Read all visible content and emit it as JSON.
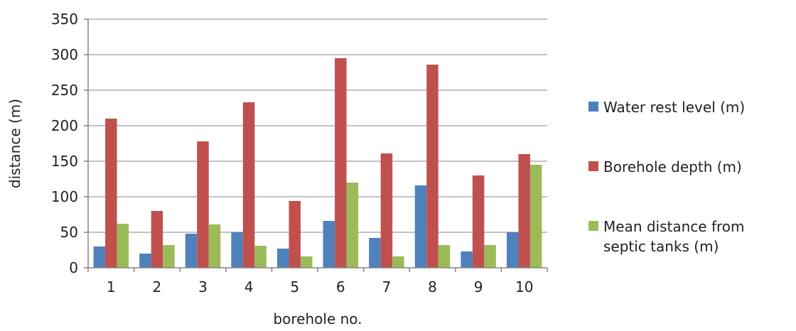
{
  "chart_data": {
    "type": "bar",
    "title": "",
    "xlabel": "borehole no.",
    "ylabel": "distance (m)",
    "ylim": [
      0,
      350
    ],
    "yticks": [
      0,
      50,
      100,
      150,
      200,
      250,
      300,
      350
    ],
    "grid": "horizontal",
    "legend_position": "right",
    "categories": [
      "1",
      "2",
      "3",
      "4",
      "5",
      "6",
      "7",
      "8",
      "9",
      "10"
    ],
    "series": [
      {
        "name": "Water rest level (m)",
        "color": "#4F81BD",
        "values": [
          30,
          20,
          48,
          50,
          27,
          66,
          42,
          116,
          23,
          50
        ]
      },
      {
        "name": "Borehole depth (m)",
        "color": "#C0504D",
        "values": [
          210,
          80,
          178,
          233,
          94,
          295,
          161,
          286,
          130,
          160
        ]
      },
      {
        "name": "Mean distance from septic tanks (m)",
        "color": "#9BBB59",
        "legend_lines": [
          "Mean distance from",
          "septic tanks (m)"
        ],
        "values": [
          62,
          32,
          61,
          31,
          16,
          120,
          16,
          32,
          32,
          145
        ]
      }
    ]
  }
}
